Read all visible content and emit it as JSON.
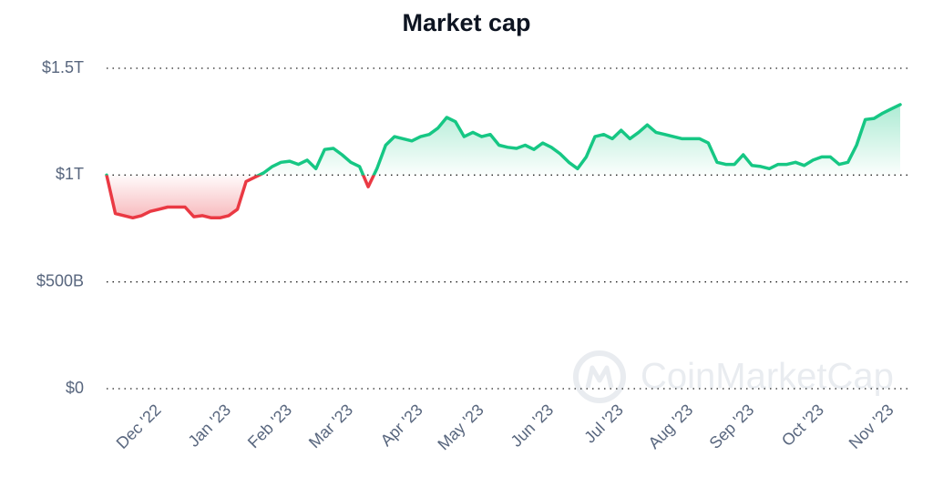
{
  "chart_data": {
    "type": "line",
    "title": "Market cap",
    "watermark": "CoinMarketCap",
    "up_color": "#16c784",
    "down_color": "#ea3943",
    "grid": true,
    "ylim": [
      0,
      1500000000000.0
    ],
    "yticks": [
      {
        "value": 0,
        "label": "$0"
      },
      {
        "value": 500000000000.0,
        "label": "$500B"
      },
      {
        "value": 1000000000000.0,
        "label": "$1T"
      },
      {
        "value": 1500000000000.0,
        "label": "$1.5T"
      }
    ],
    "categories": [
      null,
      null,
      null,
      null,
      null,
      null,
      "Dec '22",
      null,
      null,
      null,
      null,
      null,
      null,
      null,
      "Jan '23",
      null,
      null,
      null,
      null,
      null,
      null,
      "Feb '23",
      null,
      null,
      null,
      null,
      null,
      null,
      "Mar '23",
      null,
      null,
      null,
      null,
      null,
      null,
      null,
      "Apr '23",
      null,
      null,
      null,
      null,
      null,
      null,
      "May '23",
      null,
      null,
      null,
      null,
      null,
      null,
      null,
      "Jun '23",
      null,
      null,
      null,
      null,
      null,
      null,
      null,
      "Jul '23",
      null,
      null,
      null,
      null,
      null,
      null,
      null,
      "Aug '23",
      null,
      null,
      null,
      null,
      null,
      null,
      "Sep '23",
      null,
      null,
      null,
      null,
      null,
      null,
      null,
      "Oct '23",
      null,
      null,
      null,
      null,
      null,
      null,
      null,
      "Nov '23",
      null
    ],
    "series": [
      {
        "name": "Market cap",
        "values": [
          1000000000000.0,
          820000000000.0,
          810000000000.0,
          800000000000.0,
          810000000000.0,
          830000000000.0,
          840000000000.0,
          850000000000.0,
          850000000000.0,
          850000000000.0,
          805000000000.0,
          810000000000.0,
          800000000000.0,
          800000000000.0,
          810000000000.0,
          840000000000.0,
          970000000000.0,
          990000000000.0,
          1010000000000.0,
          1040000000000.0,
          1060000000000.0,
          1065000000000.0,
          1050000000000.0,
          1070000000000.0,
          1030000000000.0,
          1120000000000.0,
          1125000000000.0,
          1095000000000.0,
          1060000000000.0,
          1040000000000.0,
          945000000000.0,
          1030000000000.0,
          1140000000000.0,
          1180000000000.0,
          1170000000000.0,
          1160000000000.0,
          1180000000000.0,
          1190000000000.0,
          1220000000000.0,
          1270000000000.0,
          1250000000000.0,
          1180000000000.0,
          1200000000000.0,
          1180000000000.0,
          1190000000000.0,
          1140000000000.0,
          1130000000000.0,
          1125000000000.0,
          1140000000000.0,
          1120000000000.0,
          1150000000000.0,
          1130000000000.0,
          1100000000000.0,
          1060000000000.0,
          1030000000000.0,
          1085000000000.0,
          1180000000000.0,
          1190000000000.0,
          1170000000000.0,
          1210000000000.0,
          1170000000000.0,
          1200000000000.0,
          1235000000000.0,
          1200000000000.0,
          1190000000000.0,
          1180000000000.0,
          1170000000000.0,
          1170000000000.0,
          1170000000000.0,
          1150000000000.0,
          1060000000000.0,
          1050000000000.0,
          1050000000000.0,
          1095000000000.0,
          1045000000000.0,
          1040000000000.0,
          1030000000000.0,
          1050000000000.0,
          1050000000000.0,
          1060000000000.0,
          1045000000000.0,
          1070000000000.0,
          1085000000000.0,
          1085000000000.0,
          1050000000000.0,
          1060000000000.0,
          1140000000000.0,
          1260000000000.0,
          1265000000000.0,
          1290000000000.0,
          1310000000000.0,
          1330000000000.0
        ]
      }
    ]
  }
}
